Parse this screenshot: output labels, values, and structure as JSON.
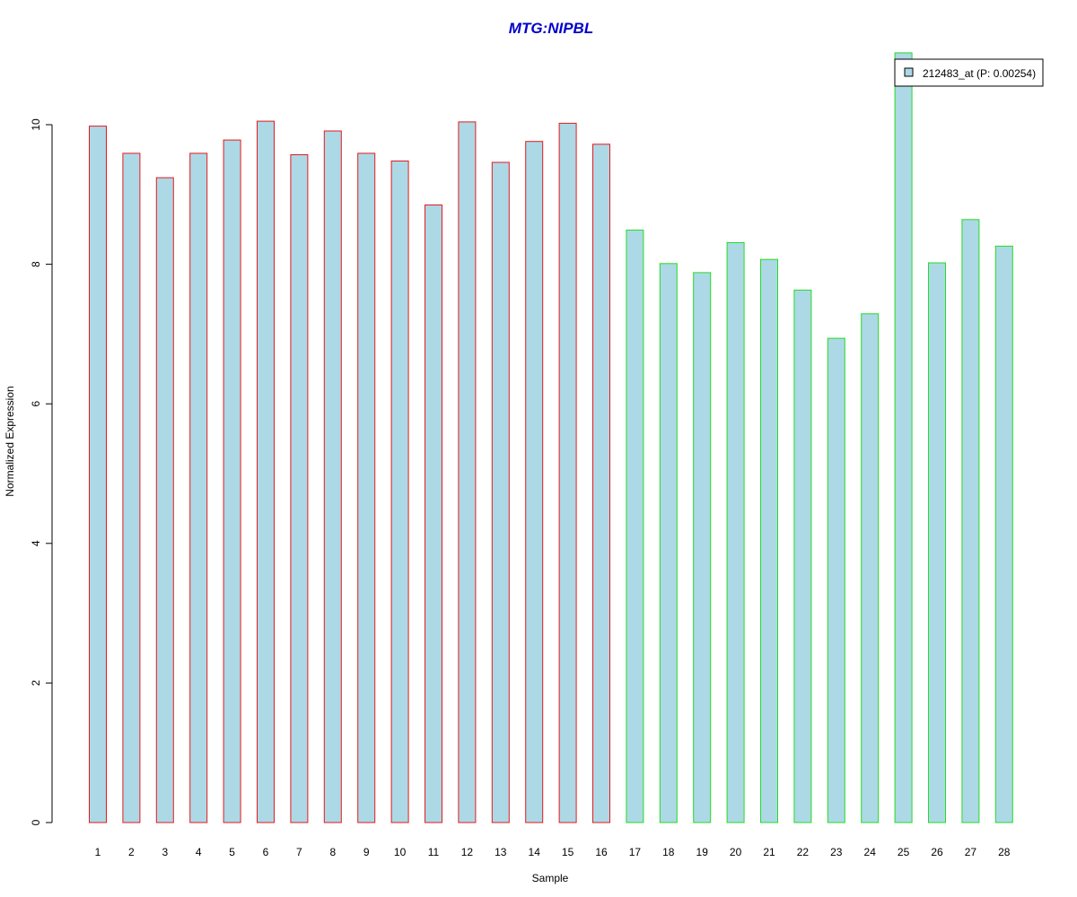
{
  "chart_data": {
    "type": "bar",
    "title": "MTG:NIPBL",
    "xlabel": "Sample",
    "ylabel": "Normalized Expression",
    "categories": [
      "1",
      "2",
      "3",
      "4",
      "5",
      "6",
      "7",
      "8",
      "9",
      "10",
      "11",
      "12",
      "13",
      "14",
      "15",
      "16",
      "17",
      "18",
      "19",
      "20",
      "21",
      "22",
      "23",
      "24",
      "25",
      "26",
      "27",
      "28"
    ],
    "series": [
      {
        "name": "212483_at (P: 0.00254)",
        "values": [
          9.98,
          9.59,
          9.24,
          9.59,
          9.78,
          10.05,
          9.57,
          9.91,
          9.59,
          9.48,
          8.85,
          10.04,
          9.46,
          9.76,
          10.02,
          9.72,
          8.49,
          8.01,
          7.88,
          8.31,
          8.07,
          7.63,
          6.94,
          7.29,
          11.03,
          8.02,
          8.64,
          8.26
        ]
      }
    ],
    "group_outline_colors": [
      "#e41a1c",
      "#e41a1c",
      "#e41a1c",
      "#e41a1c",
      "#e41a1c",
      "#e41a1c",
      "#e41a1c",
      "#e41a1c",
      "#e41a1c",
      "#e41a1c",
      "#e41a1c",
      "#e41a1c",
      "#e41a1c",
      "#e41a1c",
      "#e41a1c",
      "#e41a1c",
      "#22dd22",
      "#22dd22",
      "#22dd22",
      "#22dd22",
      "#22dd22",
      "#22dd22",
      "#22dd22",
      "#22dd22",
      "#22dd22",
      "#22dd22",
      "#22dd22",
      "#22dd22"
    ],
    "bar_fill_color": "#add8e6",
    "title_color": "#0000cc",
    "yticks": [
      0,
      2,
      4,
      6,
      8,
      10
    ],
    "ylim": [
      0,
      11.03
    ],
    "grid": false,
    "legend_position": "top-right"
  }
}
